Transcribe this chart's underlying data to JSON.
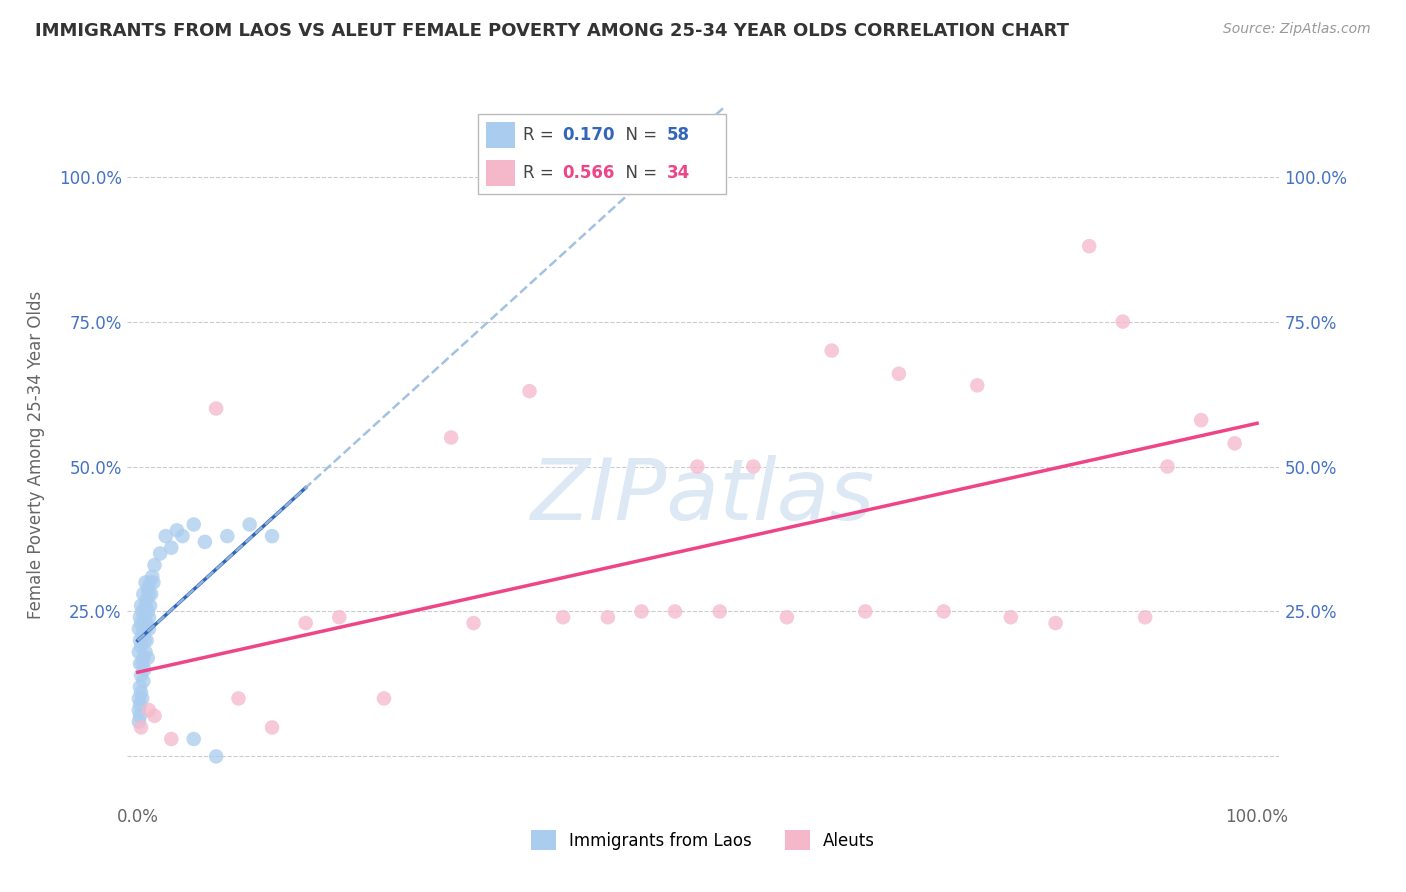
{
  "title": "IMMIGRANTS FROM LAOS VS ALEUT FEMALE POVERTY AMONG 25-34 YEAR OLDS CORRELATION CHART",
  "source": "Source: ZipAtlas.com",
  "ylabel": "Female Poverty Among 25-34 Year Olds",
  "blue_label": "Immigrants from Laos",
  "pink_label": "Aleuts",
  "blue_R": 0.17,
  "blue_N": 58,
  "pink_R": 0.566,
  "pink_N": 34,
  "blue_color": "#aaccee",
  "pink_color": "#f5b8cb",
  "blue_line_color": "#3366bb",
  "pink_line_color": "#ee4488",
  "dashed_color": "#99bbdd",
  "blue_x": [
    0.001,
    0.001,
    0.002,
    0.002,
    0.002,
    0.003,
    0.003,
    0.003,
    0.004,
    0.004,
    0.005,
    0.005,
    0.005,
    0.006,
    0.006,
    0.007,
    0.007,
    0.007,
    0.008,
    0.008,
    0.009,
    0.009,
    0.01,
    0.01,
    0.011,
    0.011,
    0.012,
    0.013,
    0.014,
    0.015,
    0.001,
    0.002,
    0.003,
    0.004,
    0.005,
    0.006,
    0.007,
    0.008,
    0.009,
    0.01,
    0.001,
    0.002,
    0.001,
    0.003,
    0.002,
    0.004,
    0.02,
    0.025,
    0.03,
    0.035,
    0.04,
    0.05,
    0.06,
    0.08,
    0.1,
    0.12,
    0.05,
    0.07
  ],
  "blue_y": [
    0.18,
    0.22,
    0.2,
    0.24,
    0.16,
    0.19,
    0.23,
    0.26,
    0.21,
    0.25,
    0.17,
    0.22,
    0.28,
    0.2,
    0.24,
    0.22,
    0.26,
    0.3,
    0.23,
    0.27,
    0.25,
    0.29,
    0.24,
    0.28,
    0.26,
    0.3,
    0.28,
    0.31,
    0.3,
    0.33,
    0.1,
    0.12,
    0.14,
    0.16,
    0.13,
    0.15,
    0.18,
    0.2,
    0.17,
    0.22,
    0.08,
    0.09,
    0.06,
    0.11,
    0.07,
    0.1,
    0.35,
    0.38,
    0.36,
    0.39,
    0.38,
    0.4,
    0.37,
    0.38,
    0.4,
    0.38,
    0.03,
    0.0
  ],
  "pink_x": [
    0.003,
    0.01,
    0.015,
    0.03,
    0.07,
    0.09,
    0.12,
    0.15,
    0.18,
    0.22,
    0.28,
    0.3,
    0.35,
    0.38,
    0.42,
    0.45,
    0.48,
    0.5,
    0.52,
    0.55,
    0.58,
    0.62,
    0.65,
    0.68,
    0.72,
    0.75,
    0.78,
    0.82,
    0.85,
    0.88,
    0.9,
    0.92,
    0.95,
    0.98
  ],
  "pink_y": [
    0.05,
    0.08,
    0.07,
    0.03,
    0.6,
    0.1,
    0.05,
    0.23,
    0.24,
    0.1,
    0.55,
    0.23,
    0.63,
    0.24,
    0.24,
    0.25,
    0.25,
    0.5,
    0.25,
    0.5,
    0.24,
    0.7,
    0.25,
    0.66,
    0.25,
    0.64,
    0.24,
    0.23,
    0.88,
    0.75,
    0.24,
    0.5,
    0.58,
    0.54
  ],
  "xlim": [
    -0.01,
    1.02
  ],
  "ylim": [
    -0.08,
    1.12
  ],
  "yticks": [
    0.0,
    0.25,
    0.5,
    0.75,
    1.0
  ],
  "xticks": [
    0.0,
    1.0
  ]
}
